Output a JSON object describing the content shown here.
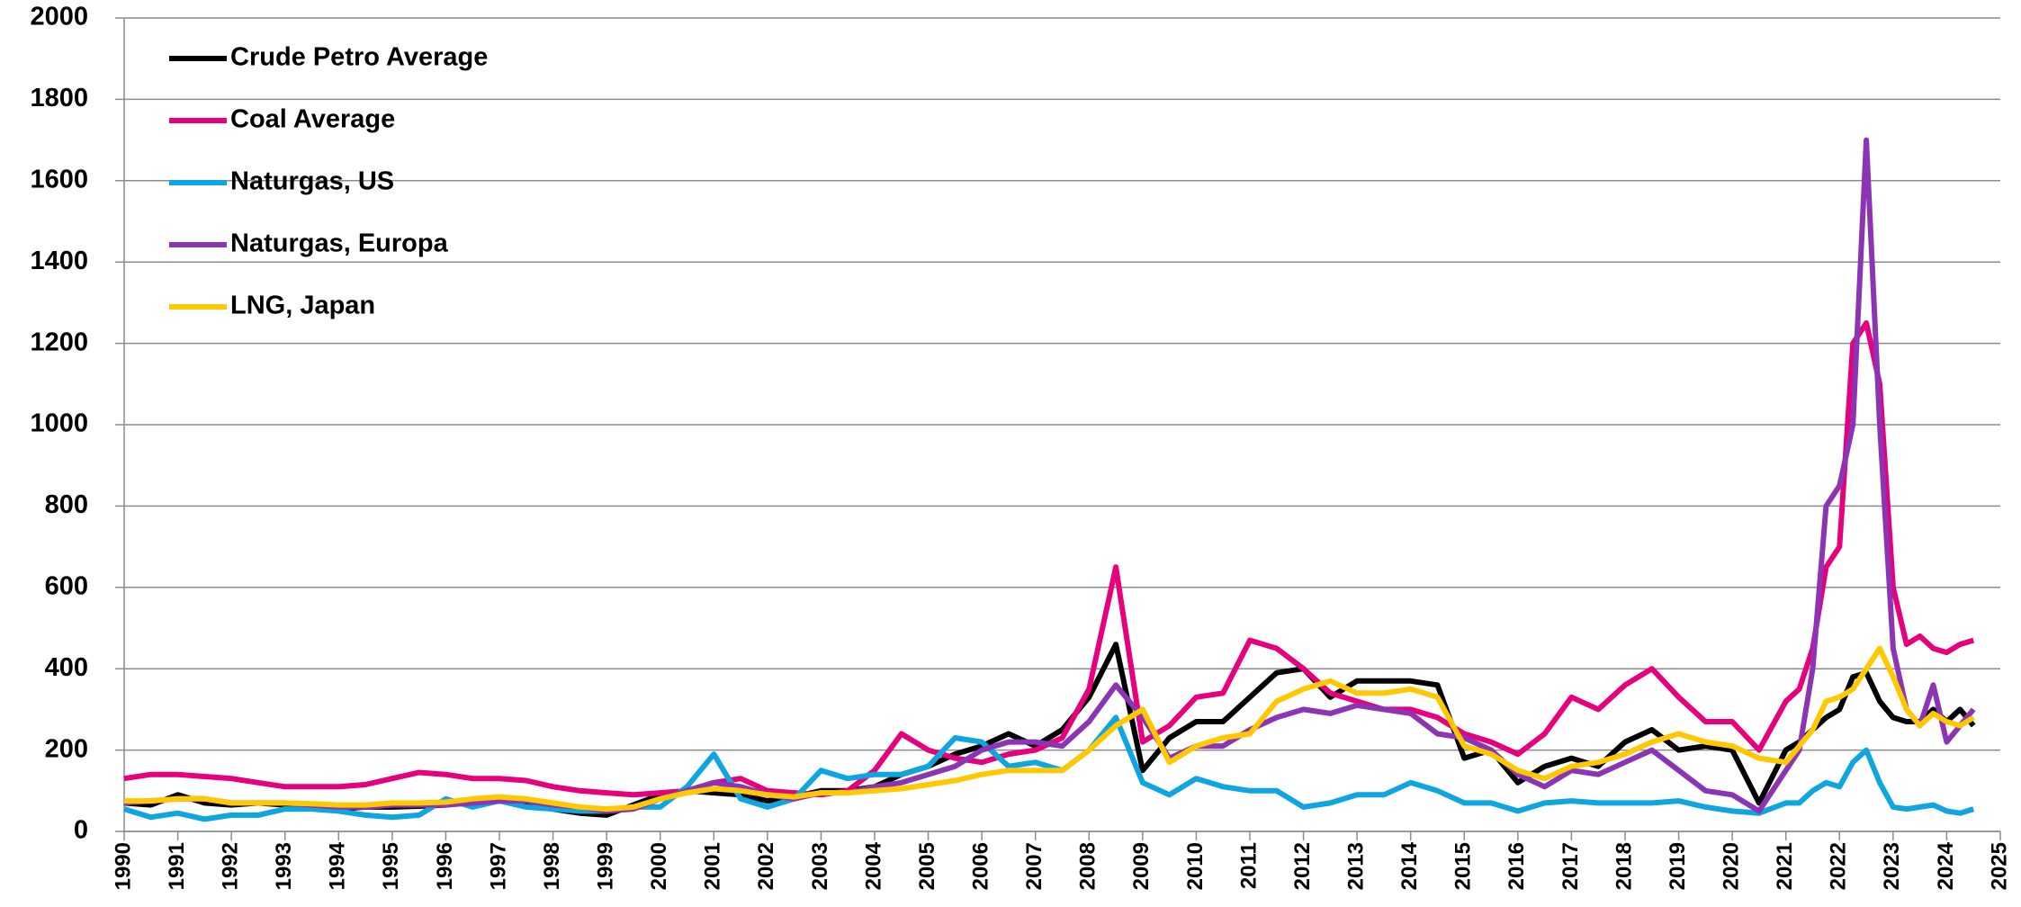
{
  "chart_data": {
    "type": "line",
    "x": [
      1990,
      1990.5,
      1991,
      1991.5,
      1992,
      1992.5,
      1993,
      1993.5,
      1994,
      1994.5,
      1995,
      1995.5,
      1996,
      1996.5,
      1997,
      1997.5,
      1998,
      1998.5,
      1999,
      1999.5,
      2000,
      2000.5,
      2001,
      2001.5,
      2002,
      2002.5,
      2003,
      2003.5,
      2004,
      2004.5,
      2005,
      2005.5,
      2006,
      2006.5,
      2007,
      2007.5,
      2008,
      2008.5,
      2009,
      2009.5,
      2010,
      2010.5,
      2011,
      2011.5,
      2012,
      2012.5,
      2013,
      2013.5,
      2014,
      2014.5,
      2015,
      2015.5,
      2016,
      2016.5,
      2017,
      2017.5,
      2018,
      2018.5,
      2019,
      2019.5,
      2020,
      2020.5,
      2021,
      2021.25,
      2021.5,
      2021.75,
      2022,
      2022.25,
      2022.5,
      2022.75,
      2023,
      2023.25,
      2023.5,
      2023.75,
      2024,
      2024.25,
      2024.5
    ],
    "series": [
      {
        "name": "Crude Petro Average",
        "color": "#000000",
        "values": [
          70,
          65,
          90,
          70,
          65,
          70,
          65,
          60,
          55,
          60,
          60,
          62,
          65,
          75,
          75,
          70,
          55,
          45,
          40,
          65,
          90,
          100,
          95,
          90,
          75,
          85,
          100,
          100,
          110,
          140,
          160,
          190,
          210,
          240,
          210,
          250,
          330,
          460,
          150,
          230,
          270,
          270,
          330,
          390,
          400,
          330,
          370,
          370,
          370,
          360,
          180,
          200,
          120,
          160,
          180,
          160,
          220,
          250,
          200,
          210,
          200,
          70,
          200,
          220,
          250,
          280,
          300,
          380,
          390,
          320,
          280,
          270,
          270,
          300,
          270,
          300,
          260
        ]
      },
      {
        "name": "Coal Average",
        "color": "#e6007e",
        "values": [
          130,
          140,
          140,
          135,
          130,
          120,
          110,
          110,
          110,
          115,
          130,
          145,
          140,
          130,
          130,
          125,
          110,
          100,
          95,
          90,
          95,
          100,
          120,
          130,
          100,
          95,
          90,
          100,
          150,
          240,
          200,
          180,
          170,
          190,
          200,
          230,
          350,
          650,
          220,
          260,
          330,
          340,
          470,
          450,
          400,
          340,
          320,
          300,
          300,
          280,
          240,
          220,
          190,
          240,
          330,
          300,
          360,
          400,
          330,
          270,
          270,
          200,
          320,
          350,
          450,
          650,
          700,
          1200,
          1250,
          1100,
          600,
          460,
          480,
          450,
          440,
          460,
          470
        ]
      },
      {
        "name": "Naturgas, US",
        "color": "#0ea5e0",
        "values": [
          55,
          35,
          45,
          30,
          40,
          40,
          55,
          55,
          50,
          40,
          35,
          40,
          80,
          60,
          75,
          60,
          55,
          50,
          50,
          60,
          60,
          110,
          190,
          80,
          60,
          80,
          150,
          130,
          140,
          140,
          160,
          230,
          220,
          160,
          170,
          150,
          200,
          280,
          120,
          90,
          130,
          110,
          100,
          100,
          60,
          70,
          90,
          90,
          120,
          100,
          70,
          70,
          50,
          70,
          75,
          70,
          70,
          70,
          75,
          60,
          50,
          45,
          70,
          70,
          100,
          120,
          110,
          170,
          200,
          120,
          60,
          55,
          60,
          65,
          50,
          45,
          55
        ]
      },
      {
        "name": "Naturgas, Europa",
        "color": "#8b35b5",
        "values": [
          70,
          75,
          80,
          80,
          70,
          70,
          70,
          65,
          60,
          60,
          65,
          65,
          65,
          70,
          75,
          75,
          65,
          60,
          50,
          55,
          80,
          100,
          120,
          110,
          90,
          80,
          95,
          95,
          110,
          120,
          140,
          160,
          200,
          220,
          220,
          210,
          270,
          360,
          280,
          180,
          210,
          210,
          250,
          280,
          300,
          290,
          310,
          300,
          290,
          240,
          230,
          200,
          140,
          110,
          150,
          140,
          170,
          200,
          150,
          100,
          90,
          50,
          150,
          200,
          400,
          800,
          850,
          1000,
          1700,
          1000,
          450,
          300,
          260,
          360,
          220,
          260,
          300
        ]
      },
      {
        "name": "LNG, Japan",
        "color": "#ffc800",
        "values": [
          75,
          75,
          80,
          80,
          70,
          70,
          70,
          68,
          65,
          65,
          70,
          70,
          72,
          80,
          85,
          80,
          70,
          60,
          55,
          60,
          80,
          95,
          105,
          100,
          90,
          85,
          95,
          95,
          100,
          105,
          115,
          125,
          140,
          150,
          150,
          150,
          200,
          260,
          300,
          170,
          210,
          230,
          240,
          320,
          350,
          370,
          340,
          340,
          350,
          330,
          210,
          190,
          150,
          130,
          160,
          170,
          190,
          220,
          240,
          220,
          210,
          180,
          170,
          210,
          250,
          320,
          330,
          350,
          400,
          450,
          380,
          300,
          260,
          290,
          270,
          260,
          280
        ]
      }
    ],
    "xlim": [
      1990,
      2025
    ],
    "xticks": [
      1990,
      1991,
      1992,
      1993,
      1994,
      1995,
      1996,
      1997,
      1998,
      1999,
      2000,
      2001,
      2002,
      2003,
      2004,
      2005,
      2006,
      2007,
      2008,
      2009,
      2010,
      2011,
      2012,
      2013,
      2014,
      2015,
      2016,
      2017,
      2018,
      2019,
      2020,
      2021,
      2022,
      2023,
      2024,
      2025
    ],
    "ylim": [
      0,
      2000
    ],
    "yticks": [
      0,
      200,
      400,
      600,
      800,
      1000,
      1200,
      1400,
      1600,
      1800,
      2000
    ],
    "grid": true,
    "legend": "top-left"
  }
}
